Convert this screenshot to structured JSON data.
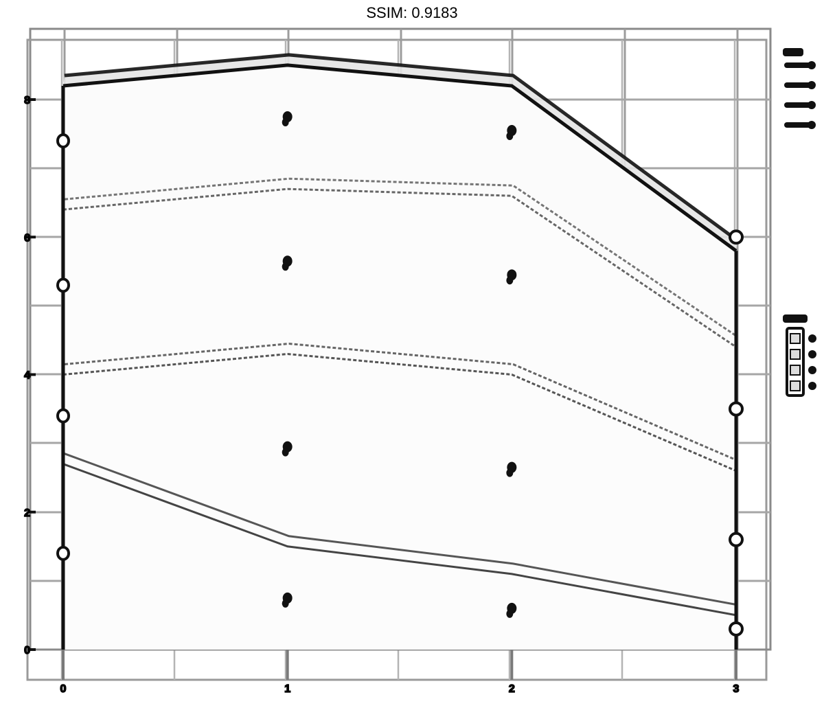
{
  "page": {
    "title": "SSIM: 0.9183"
  },
  "chart_data": {
    "type": "area",
    "title": "SSIM: 0.9183",
    "xlabel": "",
    "ylabel": "",
    "x": [
      0,
      1,
      2,
      3
    ],
    "xlim": [
      0,
      3
    ],
    "ylim": [
      0,
      8
    ],
    "y_ticks": [
      0,
      2,
      4,
      6,
      8
    ],
    "stacked": true,
    "grid": true,
    "series": [
      {
        "values": [
          2.7,
          1.5,
          1.1,
          0.5
        ],
        "line_style": "solid",
        "color": "#444444"
      },
      {
        "values": [
          1.3,
          2.8,
          2.9,
          2.1
        ],
        "line_style": "dashed",
        "color": "#555555"
      },
      {
        "values": [
          2.4,
          2.4,
          2.6,
          1.8
        ],
        "line_style": "dashed",
        "color": "#666666"
      },
      {
        "values": [
          1.8,
          1.8,
          1.6,
          1.4
        ],
        "line_style": "solid",
        "color": "#111111"
      }
    ],
    "point_labels": {
      "x": [
        1,
        1,
        1,
        1,
        2,
        2,
        2,
        2
      ],
      "y": [
        0.75,
        2.95,
        5.65,
        7.75,
        0.6,
        2.65,
        5.45,
        7.55
      ]
    },
    "edge_markers": {
      "x0_y": [
        1.4,
        3.4,
        5.3,
        7.4
      ],
      "x3_y": [
        0.3,
        1.6,
        3.5,
        6.0
      ]
    },
    "legend": {
      "position": "right",
      "group_one_count": 4,
      "group_two_count": 4
    }
  }
}
